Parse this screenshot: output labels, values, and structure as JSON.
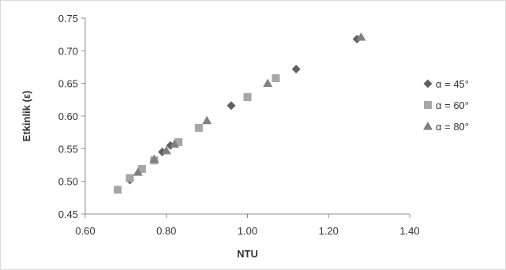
{
  "chart_data": {
    "type": "scatter",
    "xlabel": "NTU",
    "ylabel": "Etkinlik (ε)",
    "xlim": [
      0.6,
      1.4
    ],
    "ylim": [
      0.45,
      0.75
    ],
    "x_ticks": [
      "0.60",
      "0.80",
      "1.00",
      "1.20",
      "1.40"
    ],
    "x_tick_values": [
      0.6,
      0.8,
      1.0,
      1.2,
      1.4
    ],
    "y_ticks": [
      "0.45",
      "0.50",
      "0.55",
      "0.60",
      "0.65",
      "0.70",
      "0.75"
    ],
    "y_tick_values": [
      0.45,
      0.5,
      0.55,
      0.6,
      0.65,
      0.7,
      0.75
    ],
    "grid": false,
    "legend": "right",
    "series": [
      {
        "name": "α = 45°",
        "marker": "diamond",
        "color": "#606060",
        "x": [
          0.71,
          0.79,
          0.81,
          0.96,
          1.12,
          1.27
        ],
        "y": [
          0.502,
          0.545,
          0.555,
          0.616,
          0.672,
          0.718
        ]
      },
      {
        "name": "α = 60°",
        "marker": "square",
        "color": "#a6a6a6",
        "x": [
          0.68,
          0.71,
          0.74,
          0.77,
          0.83,
          0.88,
          1.0,
          1.07
        ],
        "y": [
          0.487,
          0.505,
          0.519,
          0.532,
          0.56,
          0.582,
          0.629,
          0.658
        ]
      },
      {
        "name": "α = 80°",
        "marker": "triangle",
        "color": "#808080",
        "x": [
          0.73,
          0.77,
          0.8,
          0.82,
          0.9,
          1.05,
          1.28
        ],
        "y": [
          0.514,
          0.534,
          0.547,
          0.557,
          0.593,
          0.65,
          0.721
        ]
      }
    ]
  }
}
